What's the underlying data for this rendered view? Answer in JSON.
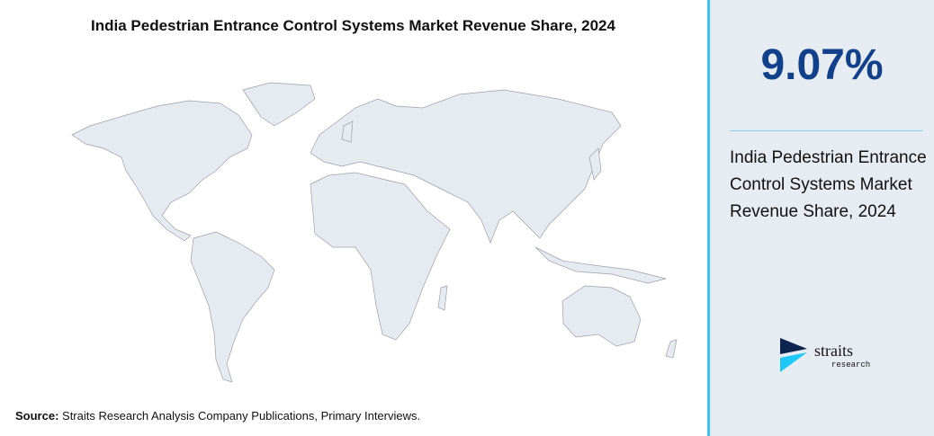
{
  "title": "India Pedestrian Entrance Control Systems Market Revenue Share, 2024",
  "source": {
    "label": "Source:",
    "text": " Straits Research Analysis Company Publications, Primary Interviews."
  },
  "panel": {
    "value": "9.07%",
    "description": "India Pedestrian Entrance Control Systems Market Revenue Share, 2024",
    "logo": {
      "word": "straits",
      "subword": "research"
    }
  },
  "colors": {
    "value": "#12418c",
    "accent": "#3fc3f5",
    "land": "#e6eaf1",
    "panel_bg": "#e7ebf2"
  }
}
